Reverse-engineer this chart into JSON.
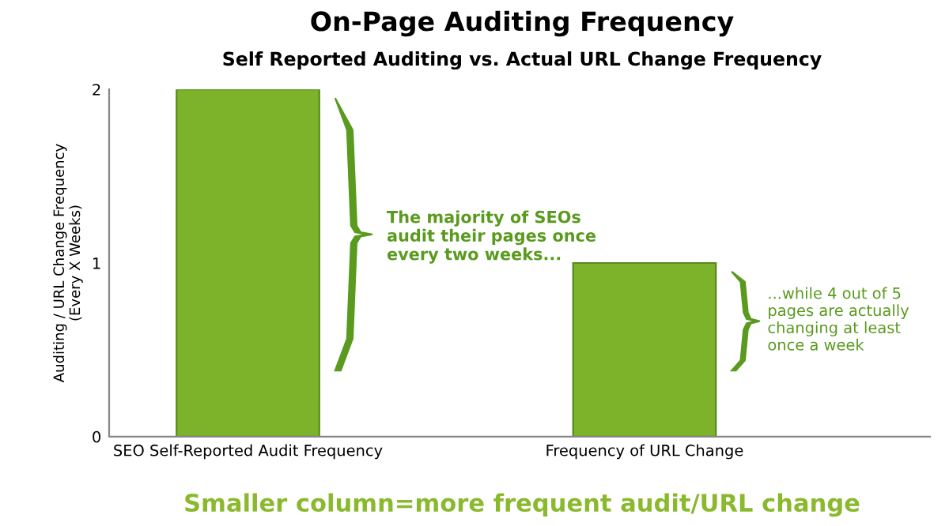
{
  "chart_data": {
    "type": "bar",
    "title": "On-Page Auditing Frequency",
    "subtitle": "Self Reported Auditing vs. Actual URL Change Frequency",
    "ylabel": "Auditing / URL Change Frequency\n(Every X Weeks)",
    "categories": [
      "SEO Self-Reported Audit Frequency",
      "Frequency of URL Change"
    ],
    "values": [
      2,
      1
    ],
    "color": "#7cb32a",
    "ylim": [
      0,
      2
    ],
    "yticks": [
      0,
      1,
      2
    ],
    "grid": false,
    "legend": false,
    "annotations": [
      "The majority of SEOs\naudit their pages once\nevery two weeks...",
      "...while 4 out of 5\npages are actually\nchanging at least\nonce a week",
      "Smaller column=more frequent audit/URL change"
    ]
  }
}
